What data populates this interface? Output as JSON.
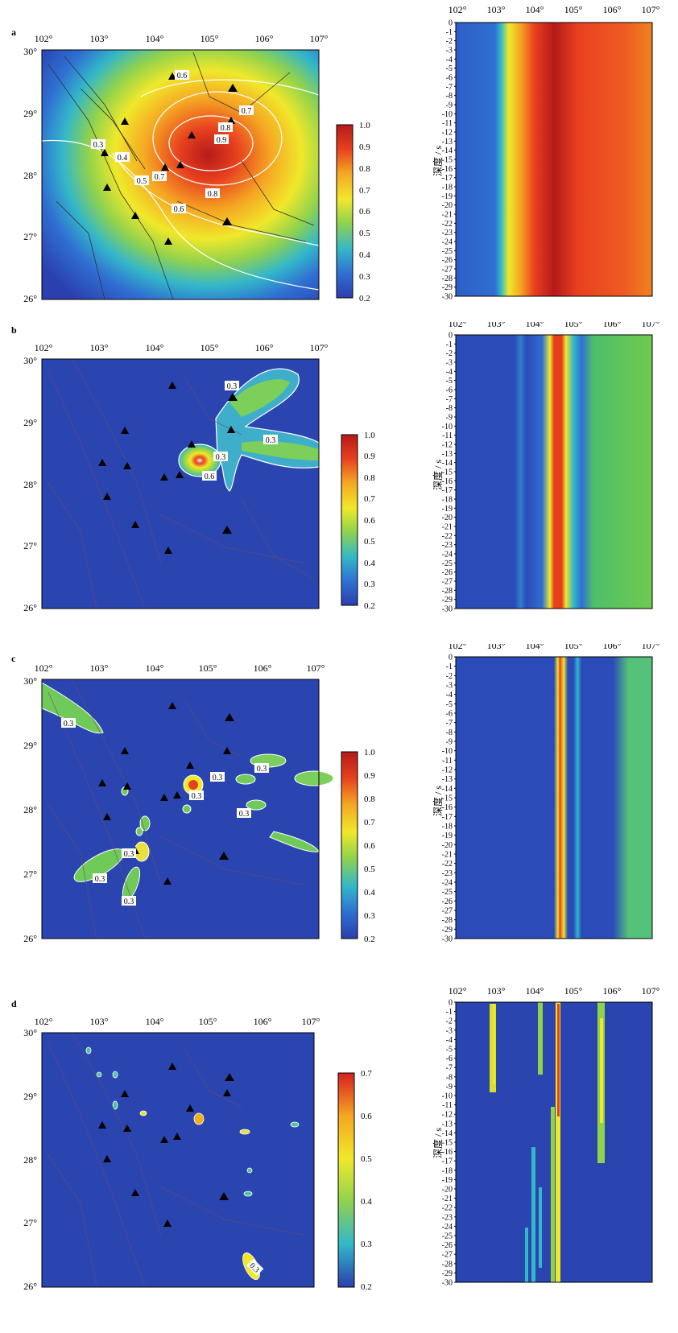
{
  "colormap": [
    "#2b3fae",
    "#2f6fd2",
    "#33b7c9",
    "#8fd24e",
    "#f0e82a",
    "#f5a623",
    "#e8401f",
    "#b51a1a"
  ],
  "panels": [
    {
      "label": "a",
      "map": {
        "lon_ticks": [
          "102°",
          "103°",
          "104°",
          "105°",
          "106°",
          "107°"
        ],
        "lat_ticks": [
          "30°",
          "29°",
          "28°",
          "27°",
          "26°"
        ],
        "contour_labels": [
          "0.3",
          "0.4",
          "0.5",
          "0.6",
          "0.6",
          "0.7",
          "0.7",
          "0.8",
          "0.8",
          "0.9"
        ]
      },
      "colorbar": {
        "ticks": [
          "1.0",
          "0.9",
          "0.8",
          "0.7",
          "0.6",
          "0.5",
          "0.4",
          "0.3",
          "0.2"
        ]
      },
      "section": {
        "lon_ticks": [
          "102°",
          "103°",
          "104°",
          "105°",
          "106°",
          "107°"
        ],
        "ylabel": "深度 / s",
        "depth_ticks": [
          "0",
          "-1",
          "-2",
          "-3",
          "-4",
          "-5",
          "-6",
          "-7",
          "-8",
          "-9",
          "-10",
          "-11",
          "-12",
          "-13",
          "-14",
          "-15",
          "-16",
          "-17",
          "-18",
          "-19",
          "-20",
          "-21",
          "-22",
          "-23",
          "-24",
          "-25",
          "-26",
          "-27",
          "-28",
          "-29",
          "-30"
        ]
      }
    },
    {
      "label": "b",
      "map": {
        "lon_ticks": [
          "102°",
          "103°",
          "104°",
          "105°",
          "106°",
          "107°"
        ],
        "lat_ticks": [
          "30°",
          "29°",
          "28°",
          "27°",
          "26°"
        ],
        "contour_labels": [
          "0.3",
          "0.3",
          "0.3",
          "0.6"
        ]
      },
      "colorbar": {
        "ticks": [
          "1.0",
          "0.9",
          "0.8",
          "0.7",
          "0.6",
          "0.5",
          "0.4",
          "0.3",
          "0.2"
        ]
      },
      "section": {
        "lon_ticks": [
          "102°",
          "103°",
          "104°",
          "105°",
          "106°",
          "107°"
        ],
        "ylabel": "深度 / s",
        "depth_ticks": [
          "0",
          "-1",
          "-2",
          "-3",
          "-4",
          "-5",
          "-6",
          "-7",
          "-8",
          "-9",
          "-10",
          "-11",
          "-12",
          "-13",
          "-14",
          "-15",
          "-16",
          "-17",
          "-18",
          "-19",
          "-20",
          "-21",
          "-22",
          "-23",
          "-24",
          "-25",
          "-26",
          "-27",
          "-28",
          "-29",
          "-30"
        ]
      }
    },
    {
      "label": "c",
      "map": {
        "lon_ticks": [
          "102°",
          "103°",
          "104°",
          "105°",
          "106°",
          "107°"
        ],
        "lat_ticks": [
          "30°",
          "29°",
          "28°",
          "27°",
          "26°"
        ],
        "contour_labels": [
          "0.3",
          "0.3",
          "0.3",
          "0.3",
          "0.3",
          "0.3",
          "0.3",
          "0.3"
        ]
      },
      "colorbar": {
        "ticks": [
          "1.0",
          "0.9",
          "0.8",
          "0.7",
          "0.6",
          "0.5",
          "0.4",
          "0.3",
          "0.2"
        ]
      },
      "section": {
        "lon_ticks": [
          "102°",
          "103°",
          "104°",
          "105°",
          "106°",
          "107°"
        ],
        "ylabel": "深度 / s",
        "depth_ticks": [
          "0",
          "-1",
          "-2",
          "-3",
          "-4",
          "-5",
          "-6",
          "-7",
          "-8",
          "-9",
          "-10",
          "-11",
          "-12",
          "-13",
          "-14",
          "-15",
          "-16",
          "-17",
          "-18",
          "-19",
          "-20",
          "-21",
          "-22",
          "-23",
          "-24",
          "-25",
          "-26",
          "-27",
          "-28",
          "-29",
          "-30"
        ]
      }
    },
    {
      "label": "d",
      "map": {
        "lon_ticks": [
          "102°",
          "103°",
          "104°",
          "105°",
          "106°",
          "107°"
        ],
        "lat_ticks": [
          "30°",
          "29°",
          "28°",
          "27°",
          "26°"
        ],
        "contour_labels": [
          "0.3"
        ]
      },
      "colorbar": {
        "ticks": [
          "0.7",
          "0.6",
          "0.5",
          "0.4",
          "0.3",
          "0.2"
        ]
      },
      "section": {
        "lon_ticks": [
          "102°",
          "103°",
          "104°",
          "105°",
          "106°",
          "107°"
        ],
        "ylabel": "深度 / s",
        "depth_ticks": [
          "0",
          "-1",
          "-2",
          "-3",
          "-4",
          "-5",
          "-6",
          "-7",
          "-8",
          "-9",
          "-10",
          "-11",
          "-12",
          "-13",
          "-14",
          "-15",
          "-16",
          "-17",
          "-18",
          "-19",
          "-20",
          "-21",
          "-22",
          "-23",
          "-24",
          "-25",
          "-26",
          "-27",
          "-28",
          "-29",
          "-30"
        ]
      }
    }
  ]
}
